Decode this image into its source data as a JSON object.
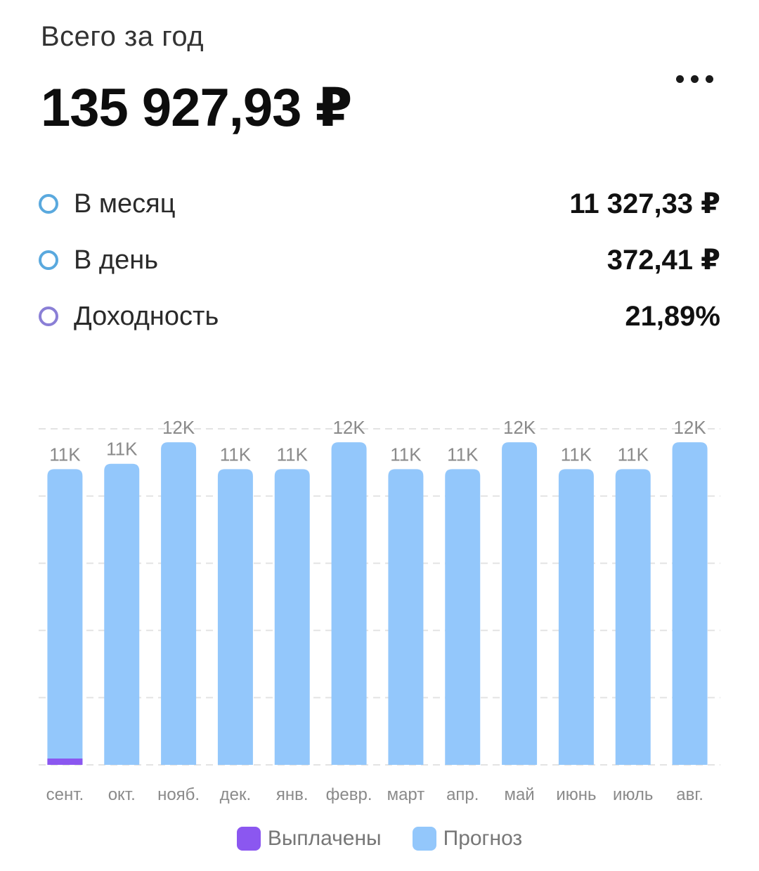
{
  "header": {
    "title": "Всего за год",
    "total": "135 927,93 ₽",
    "more_icon": "more-horizontal-icon"
  },
  "stats": [
    {
      "label": "В месяц",
      "value": "11 327,33 ₽",
      "color": "#5aa9de"
    },
    {
      "label": "В день",
      "value": "372,41 ₽",
      "color": "#5aa9de"
    },
    {
      "label": "Доходность",
      "value": "21,89%",
      "color": "#8a7fd6"
    }
  ],
  "colors": {
    "paid": "#8b57f0",
    "forecast": "#93c7fb",
    "grid": "#e3e3e3",
    "label": "#8a8a8a"
  },
  "chart_data": {
    "type": "bar",
    "stacked": true,
    "categories": [
      "сент.",
      "окт.",
      "нояб.",
      "дек.",
      "янв.",
      "февр.",
      "март",
      "апр.",
      "май",
      "июнь",
      "июль",
      "авг."
    ],
    "series": [
      {
        "name": "Выплачены",
        "values": [
          230,
          0,
          0,
          0,
          0,
          0,
          0,
          0,
          0,
          0,
          0,
          0
        ]
      },
      {
        "name": "Прогноз",
        "values": [
          10770,
          11200,
          12000,
          11000,
          11000,
          12000,
          11000,
          11000,
          12000,
          11000,
          11000,
          12000
        ]
      }
    ],
    "data_labels": [
      "11K",
      "11K",
      "12K",
      "11K",
      "11K",
      "12K",
      "11K",
      "11K",
      "12K",
      "11K",
      "11K",
      "12K"
    ],
    "ylim": [
      0,
      12500
    ],
    "grid": true,
    "legend_position": "bottom-center"
  },
  "legend": [
    {
      "label": "Выплачены",
      "color": "#8b57f0"
    },
    {
      "label": "Прогноз",
      "color": "#93c7fb"
    }
  ]
}
